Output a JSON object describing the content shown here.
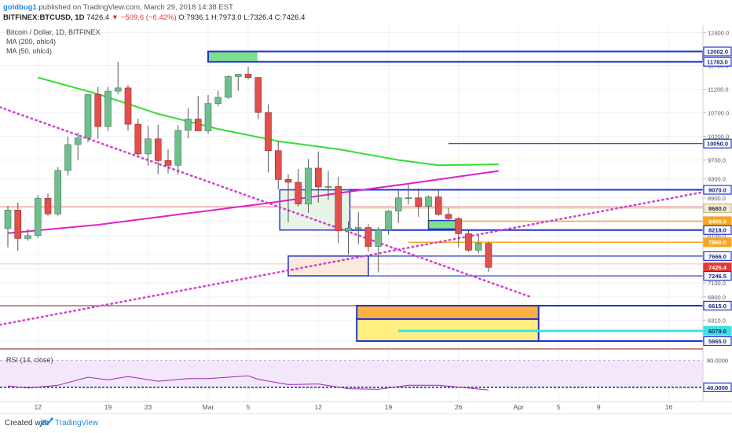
{
  "header": {
    "author": "goldbug1",
    "published": "published on TradingView.com, March 29, 2018 14:38 EST",
    "symbol": "BITFINEX:BTCUSD, 1D",
    "price": "7426.4",
    "change": "−509.6 (−6.42%)",
    "ohlc": "O:7936.1 H:7973.0 L:7326.4 C:7426.4"
  },
  "legend": {
    "title": "Bitcoin / Dollar, 1D, BITFINEX",
    "ma200": "MA (200, ohlc4)",
    "ma50": "MA (50, ohlc4)"
  },
  "footer": {
    "created_with": "Created with",
    "brand": "TradingView"
  },
  "colors": {
    "up": "#6fbf8e",
    "down": "#e0504c",
    "ma50": "#33dd33",
    "ma200": "#e020d0",
    "trend": "#d040d0",
    "box": "#2233cc",
    "orange": "#f5a623",
    "cyan": "#40e0e0",
    "yellow": "#ffef80"
  },
  "chart_data": [
    {
      "type": "candlestick",
      "title": "Bitcoin / Dollar, 1D, BITFINEX",
      "x_ticks": [
        "12",
        "19",
        "23",
        "Mar",
        "5",
        "12",
        "19",
        "26",
        "Apr",
        "5",
        "9",
        "16"
      ],
      "y_ticks": [
        "12400.0",
        "11700.0",
        "11200.0",
        "10700.0",
        "10200.0",
        "9700.0",
        "9300.0",
        "8900.0",
        "8400.0",
        "8100.0",
        "7700.0",
        "7400.0",
        "7100.0",
        "6800.0",
        "6310.0",
        "5865.0"
      ],
      "ylim": [
        5765,
        12560
      ],
      "x_date_range": [
        "2018-02-09",
        "2018-04-21"
      ],
      "candles": [
        {
          "d": "2018-02-09",
          "o": 8250,
          "h": 8730,
          "l": 7850,
          "c": 8640
        },
        {
          "d": "2018-02-10",
          "o": 8640,
          "h": 8800,
          "l": 7780,
          "c": 8040
        },
        {
          "d": "2018-02-11",
          "o": 8040,
          "h": 8240,
          "l": 7990,
          "c": 8100
        },
        {
          "d": "2018-02-12",
          "o": 8100,
          "h": 8960,
          "l": 8050,
          "c": 8890
        },
        {
          "d": "2018-02-13",
          "o": 8890,
          "h": 8990,
          "l": 8520,
          "c": 8560
        },
        {
          "d": "2018-02-14",
          "o": 8560,
          "h": 9550,
          "l": 8520,
          "c": 9480
        },
        {
          "d": "2018-02-15",
          "o": 9480,
          "h": 10200,
          "l": 9370,
          "c": 10030
        },
        {
          "d": "2018-02-16",
          "o": 10030,
          "h": 10280,
          "l": 9700,
          "c": 10170
        },
        {
          "d": "2018-02-17",
          "o": 10170,
          "h": 11100,
          "l": 10080,
          "c": 11090
        },
        {
          "d": "2018-02-18",
          "o": 11090,
          "h": 11250,
          "l": 10150,
          "c": 10410
        },
        {
          "d": "2018-02-19",
          "o": 10410,
          "h": 11250,
          "l": 10320,
          "c": 11160
        },
        {
          "d": "2018-02-20",
          "o": 11160,
          "h": 11780,
          "l": 11100,
          "c": 11230
        },
        {
          "d": "2018-02-21",
          "o": 11230,
          "h": 11290,
          "l": 10320,
          "c": 10460
        },
        {
          "d": "2018-02-22",
          "o": 10460,
          "h": 10580,
          "l": 9800,
          "c": 9830
        },
        {
          "d": "2018-02-23",
          "o": 9830,
          "h": 10430,
          "l": 9580,
          "c": 10150
        },
        {
          "d": "2018-02-24",
          "o": 10150,
          "h": 10450,
          "l": 9400,
          "c": 9690
        },
        {
          "d": "2018-02-25",
          "o": 9690,
          "h": 9930,
          "l": 9420,
          "c": 9590
        },
        {
          "d": "2018-02-26",
          "o": 9590,
          "h": 10440,
          "l": 9390,
          "c": 10330
        },
        {
          "d": "2018-02-27",
          "o": 10330,
          "h": 10800,
          "l": 10160,
          "c": 10570
        },
        {
          "d": "2018-02-28",
          "o": 10570,
          "h": 11060,
          "l": 10320,
          "c": 10320
        },
        {
          "d": "2018-03-01",
          "o": 10320,
          "h": 11080,
          "l": 10260,
          "c": 10900
        },
        {
          "d": "2018-03-02",
          "o": 10900,
          "h": 11170,
          "l": 10840,
          "c": 11030
        },
        {
          "d": "2018-03-03",
          "o": 11030,
          "h": 11500,
          "l": 11000,
          "c": 11470
        },
        {
          "d": "2018-03-04",
          "o": 11470,
          "h": 11530,
          "l": 11170,
          "c": 11520
        },
        {
          "d": "2018-03-05",
          "o": 11520,
          "h": 11680,
          "l": 11410,
          "c": 11450
        },
        {
          "d": "2018-03-06",
          "o": 11450,
          "h": 11460,
          "l": 10570,
          "c": 10710
        },
        {
          "d": "2018-03-07",
          "o": 10710,
          "h": 10880,
          "l": 9440,
          "c": 9900
        },
        {
          "d": "2018-03-08",
          "o": 9900,
          "h": 10100,
          "l": 9080,
          "c": 9290
        },
        {
          "d": "2018-03-09",
          "o": 9290,
          "h": 9400,
          "l": 8380,
          "c": 9230
        },
        {
          "d": "2018-03-10",
          "o": 9230,
          "h": 9510,
          "l": 8720,
          "c": 8770
        },
        {
          "d": "2018-03-11",
          "o": 8770,
          "h": 9720,
          "l": 8580,
          "c": 9530
        },
        {
          "d": "2018-03-12",
          "o": 9530,
          "h": 9880,
          "l": 8800,
          "c": 9130
        },
        {
          "d": "2018-03-13",
          "o": 9130,
          "h": 9470,
          "l": 8860,
          "c": 9140
        },
        {
          "d": "2018-03-14",
          "o": 9140,
          "h": 9350,
          "l": 7940,
          "c": 8200
        },
        {
          "d": "2018-03-15",
          "o": 8200,
          "h": 8400,
          "l": 7700,
          "c": 8260
        },
        {
          "d": "2018-03-16",
          "o": 8260,
          "h": 8600,
          "l": 7920,
          "c": 8270
        },
        {
          "d": "2018-03-17",
          "o": 8270,
          "h": 8340,
          "l": 7760,
          "c": 7870
        },
        {
          "d": "2018-03-18",
          "o": 7870,
          "h": 8280,
          "l": 7320,
          "c": 8220
        },
        {
          "d": "2018-03-19",
          "o": 8220,
          "h": 8640,
          "l": 8120,
          "c": 8620
        },
        {
          "d": "2018-03-20",
          "o": 8620,
          "h": 9050,
          "l": 8370,
          "c": 8900
        },
        {
          "d": "2018-03-21",
          "o": 8900,
          "h": 9180,
          "l": 8760,
          "c": 8900
        },
        {
          "d": "2018-03-22",
          "o": 8900,
          "h": 9100,
          "l": 8500,
          "c": 8720
        },
        {
          "d": "2018-03-23",
          "o": 8720,
          "h": 8950,
          "l": 8300,
          "c": 8920
        },
        {
          "d": "2018-03-24",
          "o": 8920,
          "h": 9050,
          "l": 8520,
          "c": 8550
        },
        {
          "d": "2018-03-25",
          "o": 8550,
          "h": 8690,
          "l": 8420,
          "c": 8460
        },
        {
          "d": "2018-03-26",
          "o": 8460,
          "h": 8490,
          "l": 7850,
          "c": 8140
        },
        {
          "d": "2018-03-27",
          "o": 8140,
          "h": 8220,
          "l": 7760,
          "c": 7790
        },
        {
          "d": "2018-03-28",
          "o": 7790,
          "h": 8100,
          "l": 7730,
          "c": 7940
        },
        {
          "d": "2018-03-29",
          "o": 7936.1,
          "h": 7973,
          "l": 7326.4,
          "c": 7426.4
        }
      ],
      "ma50": [
        {
          "d": "2018-02-12",
          "v": 11450
        },
        {
          "d": "2018-02-18",
          "v": 11100
        },
        {
          "d": "2018-02-24",
          "v": 10680
        },
        {
          "d": "2018-03-02",
          "v": 10360
        },
        {
          "d": "2018-03-08",
          "v": 10100
        },
        {
          "d": "2018-03-14",
          "v": 9930
        },
        {
          "d": "2018-03-20",
          "v": 9700
        },
        {
          "d": "2018-03-24",
          "v": 9590
        },
        {
          "d": "2018-03-30",
          "v": 9610
        }
      ],
      "ma200": [
        {
          "d": "2018-02-09",
          "v": 8150
        },
        {
          "d": "2018-02-18",
          "v": 8330
        },
        {
          "d": "2018-02-28",
          "v": 8600
        },
        {
          "d": "2018-03-07",
          "v": 8790
        },
        {
          "d": "2018-03-14",
          "v": 9000
        },
        {
          "d": "2018-03-21",
          "v": 9200
        },
        {
          "d": "2018-03-30",
          "v": 9470
        }
      ],
      "price_labels": [
        {
          "text": "12002.0",
          "v": 12002,
          "style": "box"
        },
        {
          "text": "11783.0",
          "v": 11783,
          "style": "box"
        },
        {
          "text": "10050.0",
          "v": 10050,
          "style": "box"
        },
        {
          "text": "9070.0",
          "v": 9070,
          "style": "box"
        },
        {
          "text": "8680.0",
          "v": 8680,
          "style": "tan"
        },
        {
          "text": "8405.0",
          "v": 8405,
          "style": "orange"
        },
        {
          "text": "8218.0",
          "v": 8218,
          "style": "box"
        },
        {
          "text": "7960.0",
          "v": 7960,
          "style": "orange"
        },
        {
          "text": "7666.0",
          "v": 7666,
          "style": "box"
        },
        {
          "text": "7426.4",
          "v": 7426.4,
          "style": "red"
        },
        {
          "text": "7246.5",
          "v": 7246.5,
          "style": "box"
        },
        {
          "text": "6615.0",
          "v": 6615,
          "style": "box"
        },
        {
          "text": "6079.0",
          "v": 6079,
          "style": "cyan"
        },
        {
          "text": "5865.0",
          "v": 5865,
          "style": "box"
        }
      ]
    },
    {
      "type": "line",
      "title": "RSI (14, close)",
      "y_ticks": [
        "80.0000",
        "40.0000"
      ],
      "ylim": [
        20,
        90
      ],
      "points": [
        {
          "d": "2018-02-09",
          "v": 42
        },
        {
          "d": "2018-02-11",
          "v": 39
        },
        {
          "d": "2018-02-14",
          "v": 43
        },
        {
          "d": "2018-02-17",
          "v": 55
        },
        {
          "d": "2018-02-19",
          "v": 51
        },
        {
          "d": "2018-02-21",
          "v": 56
        },
        {
          "d": "2018-02-24",
          "v": 49
        },
        {
          "d": "2018-02-27",
          "v": 53
        },
        {
          "d": "2018-03-01",
          "v": 53
        },
        {
          "d": "2018-03-05",
          "v": 57
        },
        {
          "d": "2018-03-06",
          "v": 52
        },
        {
          "d": "2018-03-09",
          "v": 44
        },
        {
          "d": "2018-03-12",
          "v": 45
        },
        {
          "d": "2018-03-15",
          "v": 38
        },
        {
          "d": "2018-03-18",
          "v": 37
        },
        {
          "d": "2018-03-21",
          "v": 43
        },
        {
          "d": "2018-03-24",
          "v": 43
        },
        {
          "d": "2018-03-27",
          "v": 39
        },
        {
          "d": "2018-03-29",
          "v": 36
        }
      ]
    }
  ]
}
